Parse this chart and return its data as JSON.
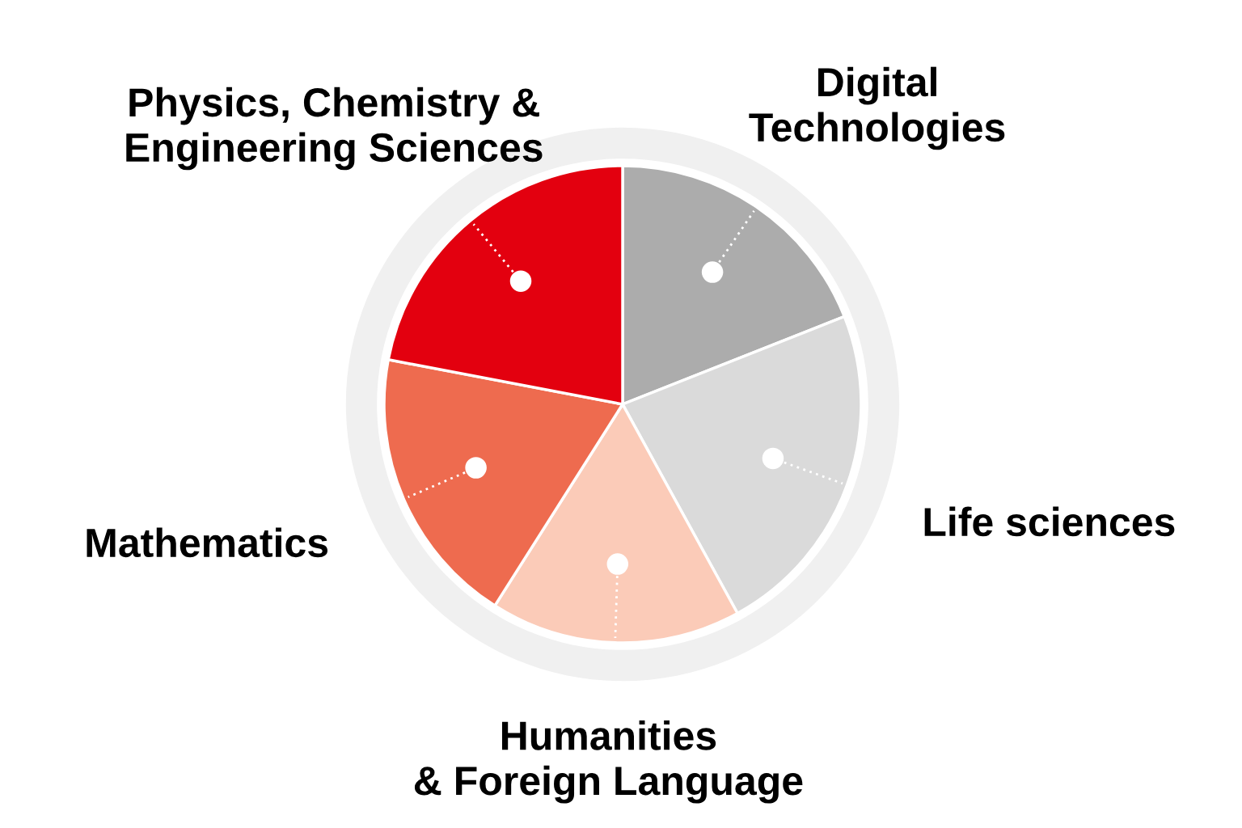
{
  "chart_data": {
    "type": "pie",
    "categories": [
      "Digital\nTechnologies",
      "Life sciences",
      "Humanities\n& Foreign Language",
      "Mathematics",
      "Physics, Chemistry &\nEngineering Sciences"
    ],
    "values": [
      19,
      23,
      17,
      19,
      22
    ],
    "colors": [
      "#acacac",
      "#dadada",
      "#fbcbb8",
      "#ee6b4f",
      "#e3000f"
    ]
  }
}
